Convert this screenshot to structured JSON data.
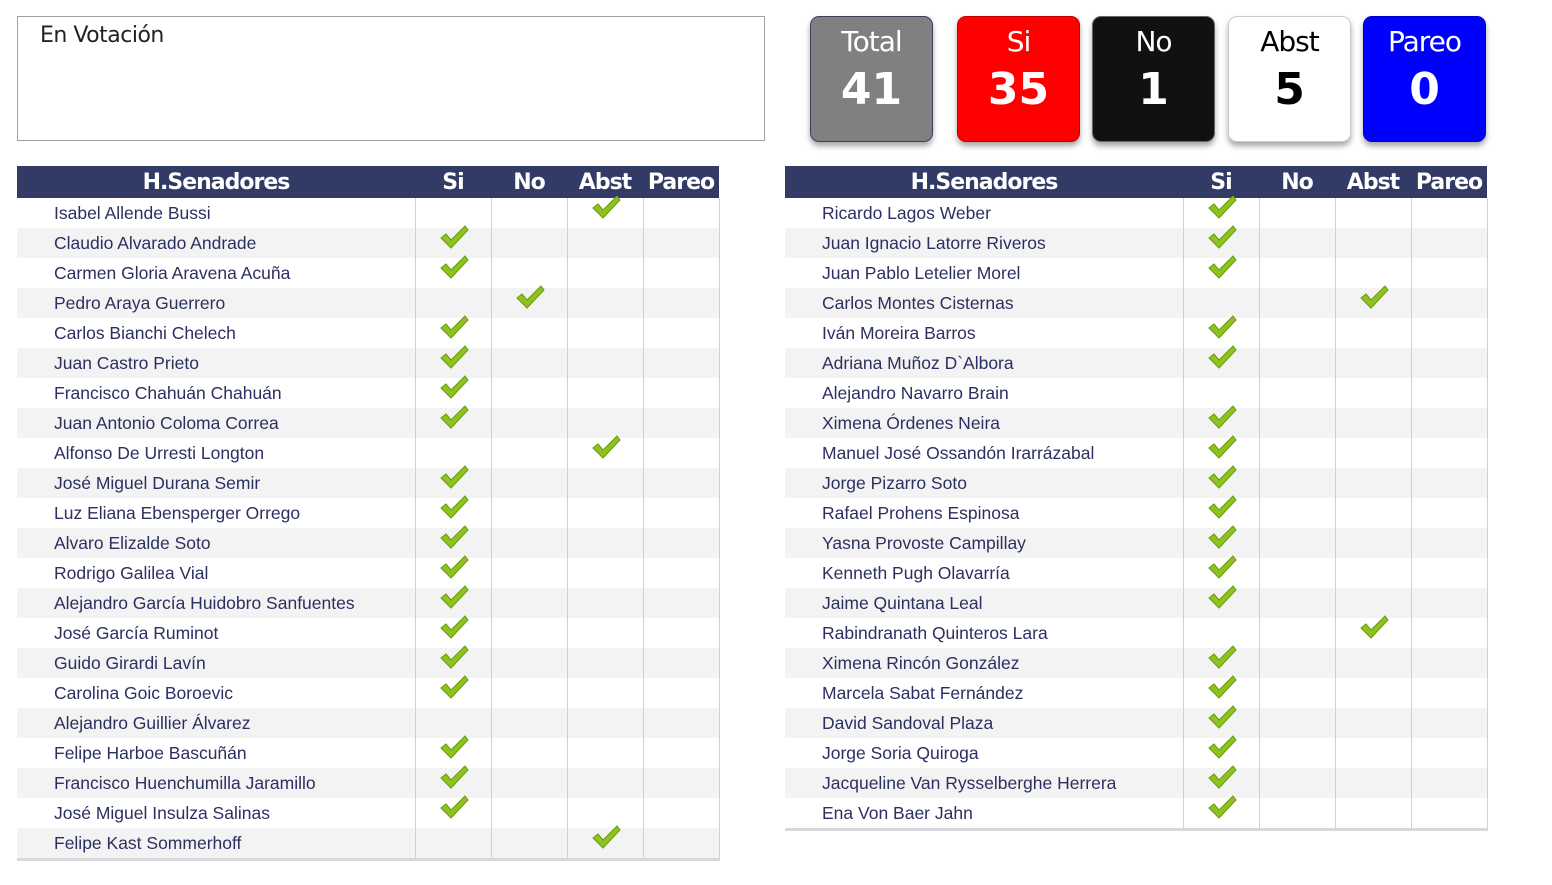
{
  "motion": {
    "title": "En Votación"
  },
  "summary": [
    {
      "label": "Total",
      "value": "41",
      "bg": "#808080",
      "fg": "#ffffff",
      "border": "#3a3f5e"
    },
    {
      "label": "Si",
      "value": "35",
      "bg": "#ff0000",
      "fg": "#ffffff",
      "border": "#c00000"
    },
    {
      "label": "No",
      "value": "1",
      "bg": "#111111",
      "fg": "#ffffff",
      "border": "#666666"
    },
    {
      "label": "Abst",
      "value": "5",
      "bg": "#ffffff",
      "fg": "#000000",
      "border": "#cccccc"
    },
    {
      "label": "Pareo",
      "value": "0",
      "bg": "#0000ff",
      "fg": "#ffffff",
      "border": "#0000cc"
    }
  ],
  "columns": [
    "H.Senadores",
    "Si",
    "No",
    "Abst",
    "Pareo"
  ],
  "check_color": "#8dc21f",
  "tables": [
    {
      "rows": [
        {
          "name": "Isabel Allende Bussi",
          "vote": "abst"
        },
        {
          "name": "Claudio Alvarado Andrade",
          "vote": "si"
        },
        {
          "name": "Carmen Gloria Aravena Acuña",
          "vote": "si"
        },
        {
          "name": "Pedro Araya Guerrero",
          "vote": "no"
        },
        {
          "name": "Carlos Bianchi Chelech",
          "vote": "si"
        },
        {
          "name": "Juan Castro Prieto",
          "vote": "si"
        },
        {
          "name": "Francisco Chahuán Chahuán",
          "vote": "si"
        },
        {
          "name": "Juan Antonio Coloma Correa",
          "vote": "si"
        },
        {
          "name": "Alfonso De Urresti Longton",
          "vote": "abst"
        },
        {
          "name": "José Miguel Durana Semir",
          "vote": "si"
        },
        {
          "name": "Luz Eliana Ebensperger Orrego",
          "vote": "si"
        },
        {
          "name": "Alvaro Elizalde Soto",
          "vote": "si"
        },
        {
          "name": "Rodrigo Galilea Vial",
          "vote": "si"
        },
        {
          "name": "Alejandro García Huidobro Sanfuentes",
          "vote": "si"
        },
        {
          "name": "José García Ruminot",
          "vote": "si"
        },
        {
          "name": "Guido Girardi Lavín",
          "vote": "si"
        },
        {
          "name": "Carolina Goic Boroevic",
          "vote": "si"
        },
        {
          "name": "Alejandro Guillier Álvarez",
          "vote": ""
        },
        {
          "name": "Felipe Harboe Bascuñán",
          "vote": "si"
        },
        {
          "name": "Francisco Huenchumilla Jaramillo",
          "vote": "si"
        },
        {
          "name": "José Miguel Insulza Salinas",
          "vote": "si"
        },
        {
          "name": "Felipe Kast Sommerhoff",
          "vote": "abst"
        }
      ]
    },
    {
      "rows": [
        {
          "name": "Ricardo Lagos Weber",
          "vote": "si"
        },
        {
          "name": "Juan Ignacio Latorre Riveros",
          "vote": "si"
        },
        {
          "name": "Juan Pablo Letelier Morel",
          "vote": "si"
        },
        {
          "name": "Carlos Montes Cisternas",
          "vote": "abst"
        },
        {
          "name": "Iván Moreira Barros",
          "vote": "si"
        },
        {
          "name": "Adriana Muñoz D`Albora",
          "vote": "si"
        },
        {
          "name": "Alejandro Navarro Brain",
          "vote": ""
        },
        {
          "name": "Ximena Órdenes Neira",
          "vote": "si"
        },
        {
          "name": "Manuel José Ossandón Irarrázabal",
          "vote": "si"
        },
        {
          "name": "Jorge Pizarro Soto",
          "vote": "si"
        },
        {
          "name": "Rafael Prohens Espinosa",
          "vote": "si"
        },
        {
          "name": "Yasna Provoste Campillay",
          "vote": "si"
        },
        {
          "name": "Kenneth Pugh Olavarría",
          "vote": "si"
        },
        {
          "name": "Jaime Quintana Leal",
          "vote": "si"
        },
        {
          "name": "Rabindranath Quinteros Lara",
          "vote": "abst"
        },
        {
          "name": "Ximena Rincón González",
          "vote": "si"
        },
        {
          "name": "Marcela Sabat Fernández",
          "vote": "si"
        },
        {
          "name": "David Sandoval Plaza",
          "vote": "si"
        },
        {
          "name": "Jorge Soria Quiroga",
          "vote": "si"
        },
        {
          "name": "Jacqueline Van Rysselberghe Herrera",
          "vote": "si"
        },
        {
          "name": "Ena Von Baer Jahn",
          "vote": "si"
        }
      ]
    }
  ]
}
